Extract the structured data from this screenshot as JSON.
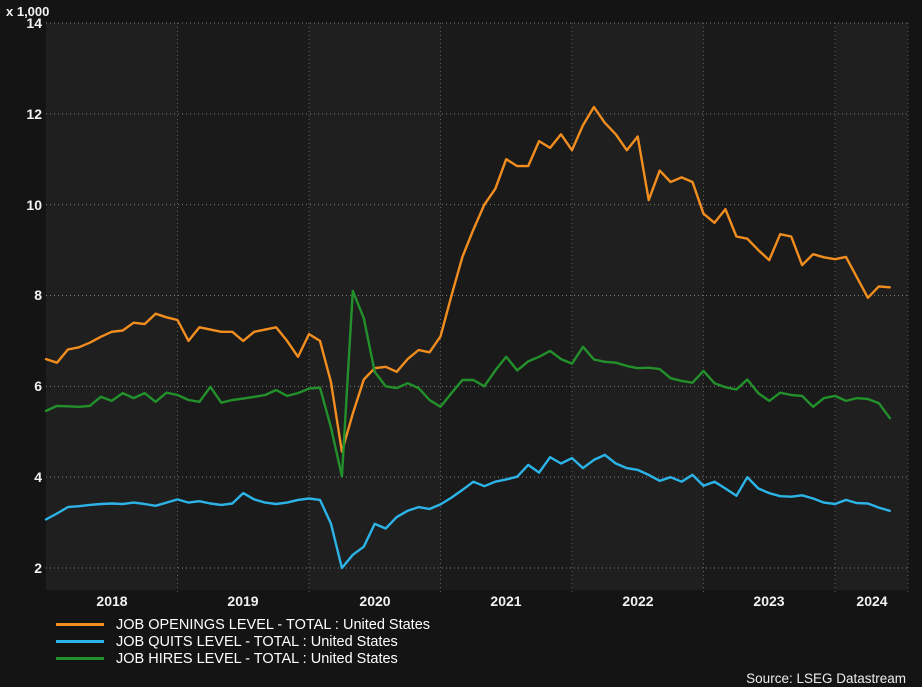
{
  "chart": {
    "unit_label": "x 1,000",
    "y_ticks": [
      "14",
      "12",
      "10",
      "8",
      "6",
      "4",
      "2"
    ],
    "x_labels": [
      "2018",
      "2019",
      "2020",
      "2021",
      "2022",
      "2023",
      "2024"
    ],
    "source": "Source: LSEG Datastream",
    "colors": {
      "background": "#141414",
      "band_light": "#1f1f1f",
      "band_dark": "#1a1a1a",
      "grid_horizontal": "#7a7a7a",
      "grid_vertical": "#5f5f5f",
      "text": "#f2f2f2"
    }
  },
  "chart_data": {
    "type": "line",
    "title": "",
    "xlabel": "",
    "ylabel": "x 1,000",
    "x_start": "2018-01",
    "x_end": "2024-06",
    "frequency": "monthly",
    "ylim": [
      2,
      14
    ],
    "y_tick_step": 2,
    "grid": "dotted",
    "legend_position": "bottom-left",
    "x_year_labels": [
      2018,
      2019,
      2020,
      2021,
      2022,
      2023,
      2024
    ],
    "series": [
      {
        "name": "JOB OPENINGS LEVEL - TOTAL : United States",
        "color": "#f28e1f",
        "values": [
          6.6,
          6.52,
          6.81,
          6.86,
          6.96,
          7.09,
          7.2,
          7.23,
          7.4,
          7.37,
          7.6,
          7.52,
          7.46,
          7.0,
          7.3,
          7.25,
          7.2,
          7.2,
          7.0,
          7.2,
          7.25,
          7.3,
          7.0,
          6.65,
          7.15,
          7.0,
          6.1,
          4.56,
          5.4,
          6.15,
          6.4,
          6.43,
          6.32,
          6.6,
          6.8,
          6.75,
          7.1,
          8.0,
          8.85,
          9.45,
          10.0,
          10.35,
          11.0,
          10.85,
          10.85,
          11.4,
          11.25,
          11.55,
          11.2,
          11.75,
          12.15,
          11.8,
          11.55,
          11.2,
          11.5,
          10.1,
          10.75,
          10.5,
          10.6,
          10.5,
          9.8,
          9.6,
          9.9,
          9.3,
          9.25,
          9.0,
          8.78,
          9.35,
          9.3,
          8.67,
          8.91,
          8.84,
          8.8,
          8.85,
          8.4,
          7.95,
          8.2,
          8.18
        ]
      },
      {
        "name": "JOB QUITS LEVEL - TOTAL : United States",
        "color": "#2cb4e8",
        "values": [
          3.07,
          3.2,
          3.34,
          3.36,
          3.39,
          3.41,
          3.42,
          3.41,
          3.44,
          3.41,
          3.37,
          3.44,
          3.51,
          3.44,
          3.47,
          3.42,
          3.39,
          3.42,
          3.65,
          3.51,
          3.44,
          3.41,
          3.44,
          3.5,
          3.53,
          3.5,
          2.98,
          2.0,
          2.29,
          2.47,
          2.97,
          2.87,
          3.12,
          3.26,
          3.34,
          3.3,
          3.4,
          3.55,
          3.72,
          3.9,
          3.8,
          3.9,
          3.95,
          4.01,
          4.27,
          4.1,
          4.44,
          4.3,
          4.42,
          4.2,
          4.38,
          4.49,
          4.3,
          4.2,
          4.16,
          4.05,
          3.92,
          4.0,
          3.9,
          4.05,
          3.81,
          3.9,
          3.75,
          3.59,
          4.0,
          3.75,
          3.65,
          3.58,
          3.57,
          3.6,
          3.53,
          3.44,
          3.41,
          3.5,
          3.43,
          3.42,
          3.33,
          3.26
        ]
      },
      {
        "name": "JOB HIRES LEVEL - TOTAL : United States",
        "color": "#22912b",
        "values": [
          5.46,
          5.57,
          5.56,
          5.55,
          5.57,
          5.77,
          5.68,
          5.85,
          5.74,
          5.85,
          5.66,
          5.86,
          5.81,
          5.7,
          5.66,
          5.99,
          5.64,
          5.7,
          5.73,
          5.77,
          5.81,
          5.92,
          5.79,
          5.85,
          5.95,
          5.97,
          5.1,
          4.02,
          8.1,
          7.5,
          6.32,
          6.0,
          5.96,
          6.07,
          5.96,
          5.7,
          5.55,
          5.85,
          6.14,
          6.14,
          6.0,
          6.35,
          6.65,
          6.35,
          6.55,
          6.65,
          6.78,
          6.6,
          6.5,
          6.87,
          6.59,
          6.54,
          6.52,
          6.45,
          6.4,
          6.41,
          6.38,
          6.18,
          6.12,
          6.08,
          6.34,
          6.07,
          5.98,
          5.93,
          6.15,
          5.85,
          5.68,
          5.86,
          5.81,
          5.79,
          5.55,
          5.74,
          5.79,
          5.68,
          5.74,
          5.72,
          5.63,
          5.3
        ]
      }
    ]
  }
}
